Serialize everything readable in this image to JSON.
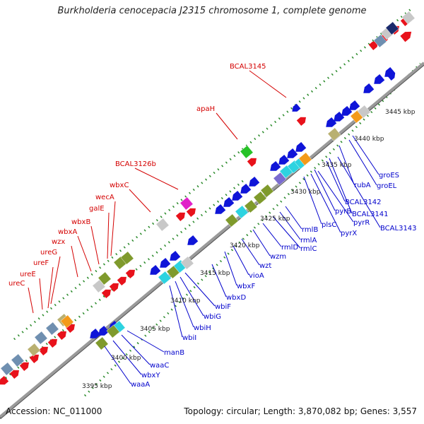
{
  "title": "Burkholderia cenocepacia J2315 chromosome 1, complete genome",
  "footer": {
    "accession": "Accession: NC_011000",
    "stats": "Topology: circular; Length: 3,870,082 bp; Genes: 3,557"
  },
  "colors": {
    "cds_forward": "#e8121b",
    "cds_reverse": "#0f15d8",
    "red_label": "#d40000",
    "blue_label": "#0000cc",
    "backbone": "#8a8a8a",
    "dotted": "#2a8a2a",
    "feature_olive": "#7f9a2c",
    "feature_cyan": "#2dd3e0",
    "feature_steel": "#6f8fb0",
    "feature_khaki": "#b9b070",
    "feature_orange": "#f39a1a",
    "feature_green": "#27c227",
    "feature_magenta": "#e020c8",
    "feature_grey": "#c8c8c8",
    "feature_navy": "#1a2a6c",
    "feature_purple": "#7a6bd0"
  },
  "kbp_labels": [
    "3395 kbp",
    "3400 kbp",
    "3405 kbp",
    "3410 kbp",
    "3415 kbp",
    "3420 kbp",
    "3425 kbp",
    "3430 kbp",
    "3435 kbp",
    "3440 kbp",
    "3445 kbp"
  ],
  "genes_top": [
    "ureC",
    "ureE",
    "ureF",
    "ureG",
    "wzx",
    "wbxA",
    "wbxB",
    "galE",
    "wecA",
    "wbxC",
    "BCAL3126b",
    "apaH",
    "BCAL3145"
  ],
  "genes_bottom": [
    "waaA",
    "wbxY",
    "waaC",
    "manB",
    "wbiI",
    "wbiH",
    "wbiG",
    "wbiF",
    "wbxD",
    "wbxF",
    "vioA",
    "wzt",
    "wzm",
    "rmlD",
    "rmlC",
    "rmlA",
    "rmlB",
    "plsC",
    "pyrX",
    "pyrR",
    "pyrB",
    "BCAL3141",
    "BCAL3142",
    "BCAL3143",
    "rubA",
    "groEL",
    "groES"
  ]
}
